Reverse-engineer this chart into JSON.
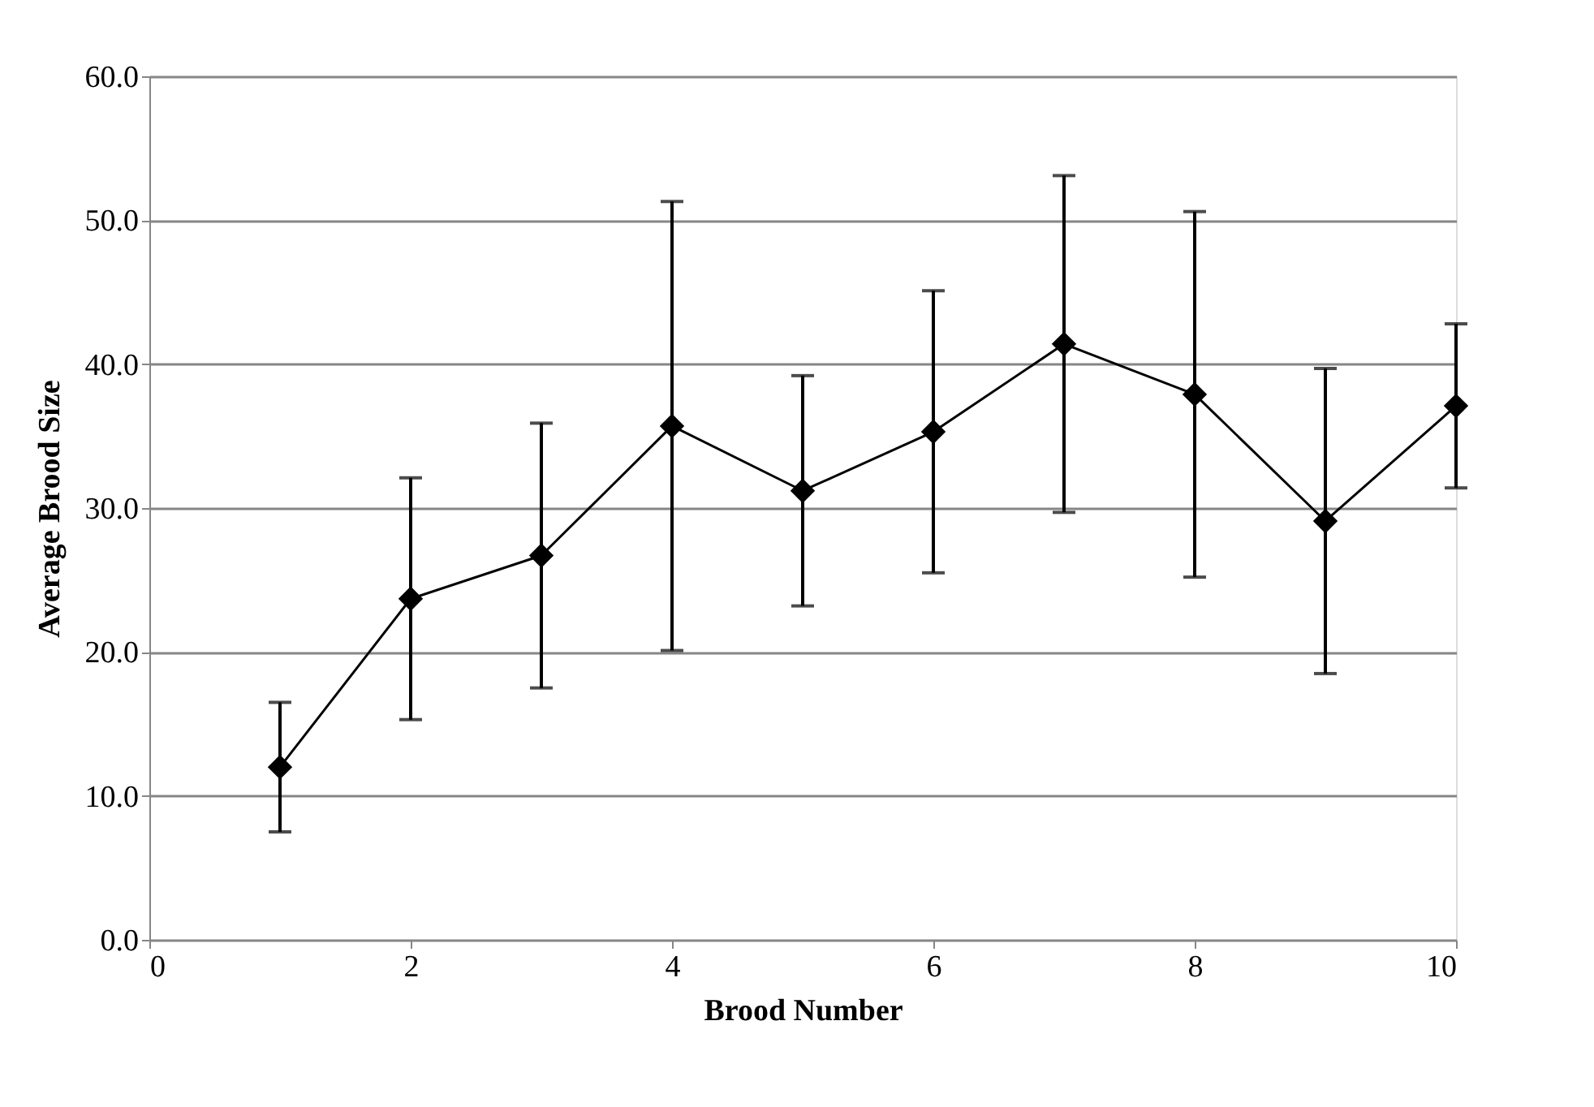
{
  "chart_data": {
    "type": "line",
    "xlabel": "Brood Number",
    "ylabel": "Average Brood Size",
    "x": [
      1,
      2,
      3,
      4,
      5,
      6,
      7,
      8,
      9,
      10
    ],
    "series": [
      {
        "color": "#000000",
        "values": [
          12.0,
          23.7,
          26.7,
          35.7,
          31.2,
          35.3,
          41.4,
          37.9,
          29.1,
          37.1
        ],
        "errors": [
          4.5,
          8.4,
          9.2,
          15.6,
          8.0,
          9.8,
          11.7,
          12.7,
          10.6,
          5.7
        ]
      }
    ],
    "xlim": [
      0,
      10
    ],
    "xticks": [
      0,
      2,
      4,
      6,
      8,
      10
    ],
    "ylim": [
      0,
      60
    ],
    "yticks": [
      {
        "value": 0,
        "label": "0.0"
      },
      {
        "value": 10,
        "label": "10.0"
      },
      {
        "value": 20,
        "label": "20.0"
      },
      {
        "value": 30,
        "label": "30.0"
      },
      {
        "value": 40,
        "label": "40.0"
      },
      {
        "value": 50,
        "label": "50.0"
      },
      {
        "value": 60,
        "label": "60.0"
      }
    ],
    "grid": "y",
    "marker": "diamond",
    "line_style": "solid"
  }
}
